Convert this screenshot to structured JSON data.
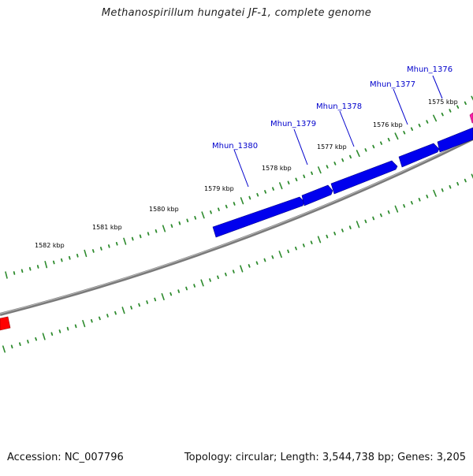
{
  "title": "Methanospirillum hungatei JF-1, complete genome",
  "footer": {
    "accession": "Accession: NC_007796",
    "summary": "Topology: circular; Length: 3,544,738 bp; Genes: 3,205"
  },
  "colors": {
    "background": "#ffffff",
    "backbone": "#7a7a7a",
    "tick": "#2e8b2e",
    "gene_forward": "#0000ee",
    "gene_label": "#0000cc",
    "reverse_feature": "#ff0000",
    "edge_feature": "#ff22aa"
  },
  "scale": {
    "unit": "kbp",
    "labels": [
      "1582 kbp",
      "1581 kbp",
      "1580 kbp",
      "1579 kbp",
      "1578 kbp",
      "1577 kbp",
      "1576 kbp",
      "1575 kbp"
    ]
  },
  "genes": [
    {
      "name": "Mhun_1380"
    },
    {
      "name": "Mhun_1379"
    },
    {
      "name": "Mhun_1378"
    },
    {
      "name": "Mhun_1377"
    },
    {
      "name": "Mhun_1376"
    }
  ]
}
